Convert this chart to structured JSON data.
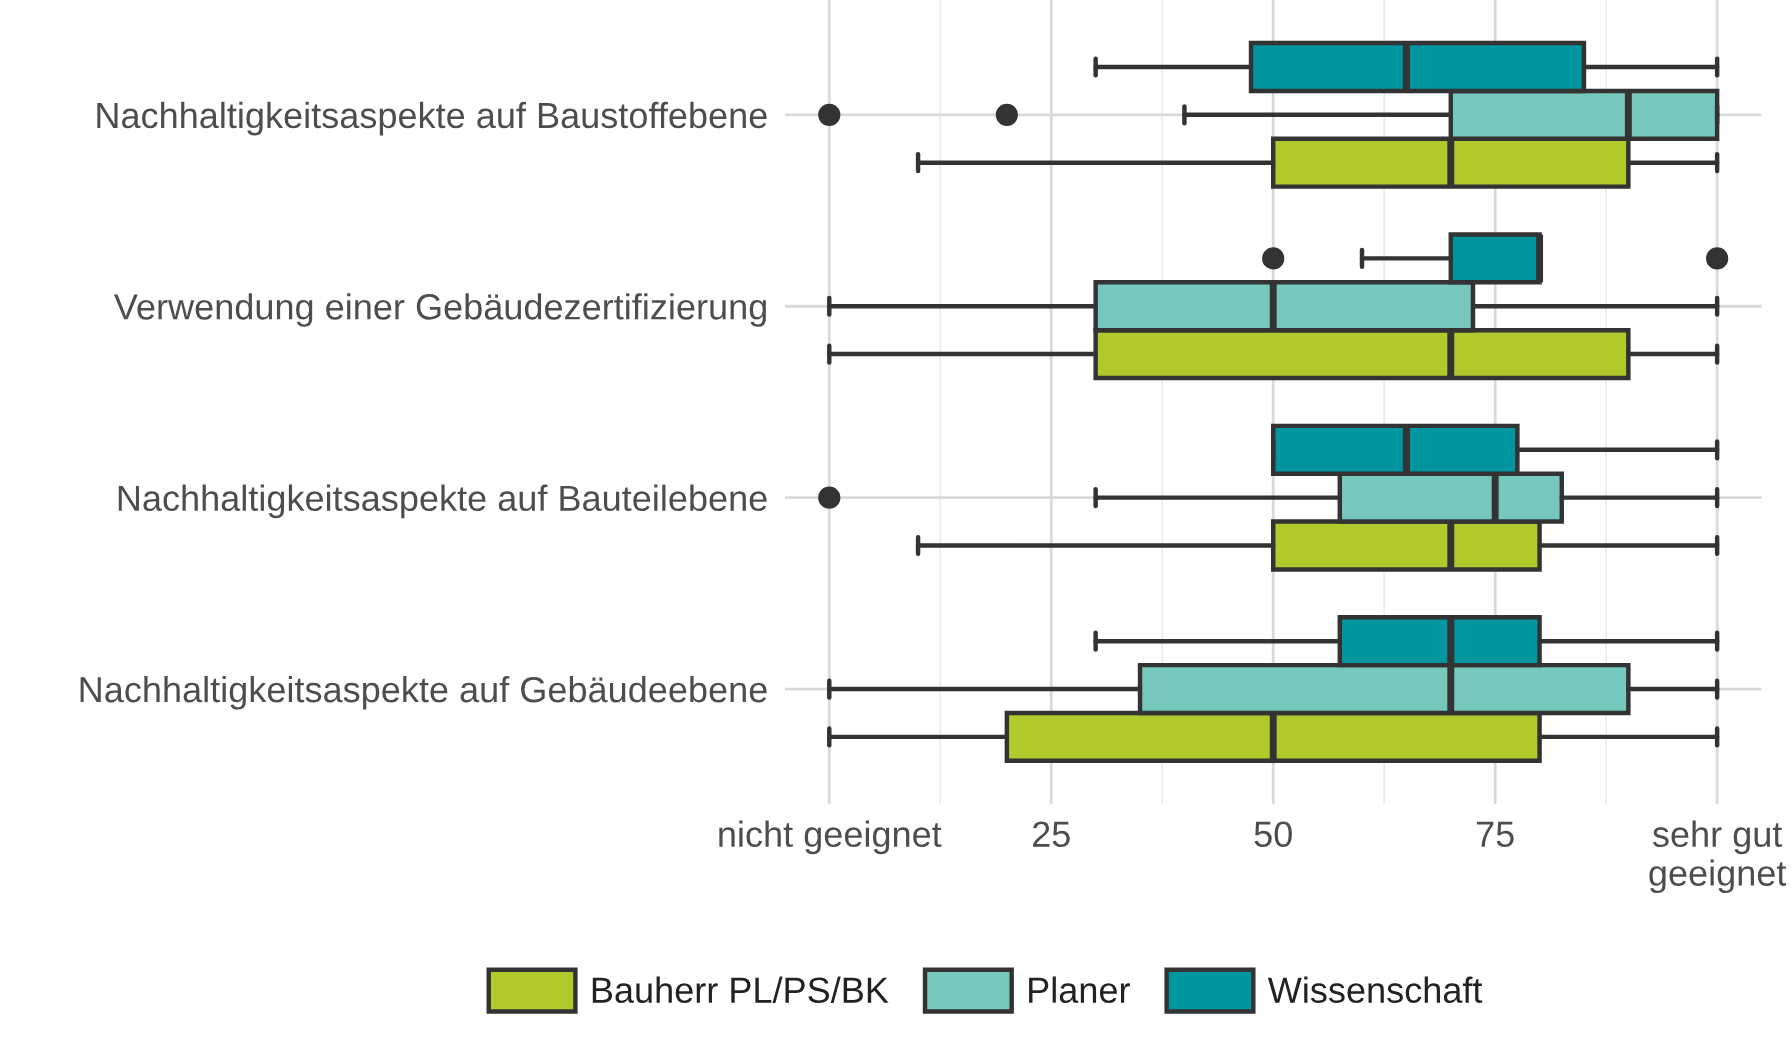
{
  "chart_data": {
    "type": "box",
    "orientation": "horizontal",
    "categories": [
      "Nachhaltigkeitsaspekte auf Baustoffebene",
      "Verwendung einer Gebäudezertifizierung",
      "Nachhaltigkeitsaspekte auf Bauteilebene",
      "Nachhaltigkeitsaspekte auf Gebäudeebene"
    ],
    "series": [
      {
        "name": "Bauherr PL/PS/BK",
        "color": "#b2c92b",
        "boxes": [
          {
            "low": 10,
            "q1": 50,
            "median": 70,
            "q3": 90,
            "high": 100
          },
          {
            "low": 0,
            "q1": 30,
            "median": 70,
            "q3": 90,
            "high": 100
          },
          {
            "low": 10,
            "q1": 50,
            "median": 70,
            "q3": 80,
            "high": 100
          },
          {
            "low": 0,
            "q1": 20,
            "median": 50,
            "q3": 80,
            "high": 100
          }
        ]
      },
      {
        "name": "Planer",
        "color": "#76c8bd",
        "boxes": [
          {
            "low": 40,
            "q1": 70,
            "median": 90,
            "q3": 100,
            "high": 100,
            "outliers": [
              0,
              20
            ]
          },
          {
            "low": 0,
            "q1": 30,
            "median": 50,
            "q3": 72.5,
            "high": 100
          },
          {
            "low": 30,
            "q1": 57.5,
            "median": 75,
            "q3": 82.5,
            "high": 100,
            "outliers": [
              0
            ]
          },
          {
            "low": 0,
            "q1": 35,
            "median": 70,
            "q3": 90,
            "high": 100
          }
        ]
      },
      {
        "name": "Wissenschaft",
        "color": "#00959f",
        "boxes": [
          {
            "low": 30,
            "q1": 47.5,
            "median": 65,
            "q3": 85,
            "high": 100
          },
          {
            "low": 60,
            "q1": 70,
            "median": 80,
            "q3": 80,
            "high": 80,
            "outliers": [
              50,
              100
            ]
          },
          {
            "low": 50,
            "q1": 50,
            "median": 65,
            "q3": 77.5,
            "high": 100
          },
          {
            "low": 30,
            "q1": 57.5,
            "median": 70,
            "q3": 80,
            "high": 100
          }
        ]
      }
    ],
    "xlim": [
      -5,
      105
    ],
    "xticks": [
      {
        "value": 0,
        "label": "nicht geeignet"
      },
      25,
      50,
      75,
      {
        "value": 100,
        "label": "sehr gut\ngeeignet"
      }
    ],
    "grid": true,
    "legend": "bottom"
  }
}
